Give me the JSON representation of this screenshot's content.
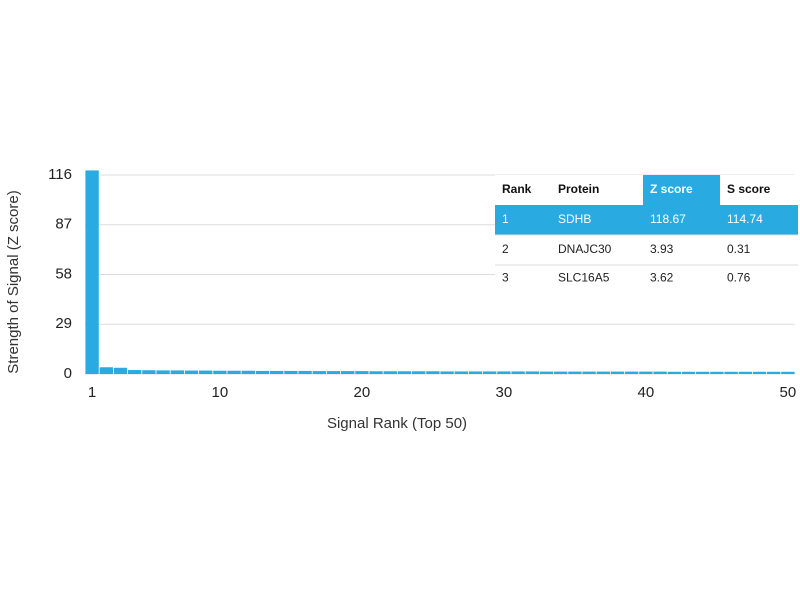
{
  "chart_data": {
    "type": "bar",
    "xlabel": "Signal Rank (Top 50)",
    "ylabel": "Strength of Signal (Z score)",
    "color": "#29abe2",
    "x": [
      1,
      2,
      3,
      4,
      5,
      6,
      7,
      8,
      9,
      10,
      11,
      12,
      13,
      14,
      15,
      16,
      17,
      18,
      19,
      20,
      21,
      22,
      23,
      24,
      25,
      26,
      27,
      28,
      29,
      30,
      31,
      32,
      33,
      34,
      35,
      36,
      37,
      38,
      39,
      40,
      41,
      42,
      43,
      44,
      45,
      46,
      47,
      48,
      49,
      50
    ],
    "values": [
      118.67,
      3.93,
      3.62,
      2.3,
      2.2,
      2.1,
      2.1,
      2.0,
      2.0,
      1.9,
      1.9,
      1.9,
      1.8,
      1.8,
      1.8,
      1.8,
      1.7,
      1.7,
      1.7,
      1.7,
      1.6,
      1.6,
      1.6,
      1.6,
      1.6,
      1.5,
      1.5,
      1.5,
      1.5,
      1.5,
      1.5,
      1.5,
      1.4,
      1.4,
      1.4,
      1.4,
      1.4,
      1.4,
      1.4,
      1.4,
      1.4,
      1.3,
      1.3,
      1.3,
      1.3,
      1.3,
      1.3,
      1.3,
      1.3,
      1.3
    ],
    "xlim": [
      0.5,
      50.5
    ],
    "xticks": [
      1,
      10,
      20,
      30,
      40,
      50
    ],
    "ylim": [
      0,
      116
    ],
    "yticks": [
      0,
      29,
      58,
      87,
      116
    ],
    "grid": true
  },
  "table": {
    "columns": [
      "Rank",
      "Protein",
      "Z score",
      "S score"
    ],
    "rows": [
      [
        1,
        "SDHB",
        118.67,
        114.74
      ],
      [
        2,
        "DNAJC30",
        3.93,
        0.31
      ],
      [
        3,
        "SLC16A5",
        3.62,
        0.76
      ]
    ],
    "highlight_row": 0,
    "highlight_column": 2
  }
}
